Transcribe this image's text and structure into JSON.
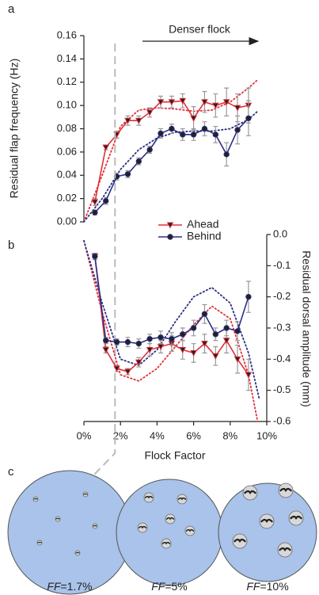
{
  "chart_data": [
    {
      "type": "line",
      "panel": "a",
      "y_label": "Residual flap frequency (Hz)",
      "annotation": "Denser flock",
      "xlim": [
        0,
        10
      ],
      "ylim": [
        0,
        0.16
      ],
      "yticks": [
        {
          "value": 0,
          "label": "0.00"
        },
        0.02,
        0.04,
        0.06,
        0.08,
        {
          "value": 0.1,
          "label": "0.10"
        },
        0.12,
        0.14,
        0.16
      ],
      "x": [
        0.6,
        1.2,
        1.8,
        2.4,
        3.0,
        3.6,
        4.2,
        4.8,
        5.4,
        6.0,
        6.6,
        7.2,
        7.8,
        8.4,
        9.0
      ],
      "series": [
        {
          "name": "Ahead",
          "color": "#e0303a",
          "marker": "triangle-down",
          "values": [
            0.017,
            0.064,
            0.075,
            0.087,
            0.087,
            0.094,
            0.103,
            0.103,
            0.104,
            0.089,
            0.103,
            0.1,
            0.103,
            0.098,
            0.1
          ],
          "errors": [
            0.003,
            0.002,
            0.003,
            0.004,
            0.004,
            0.004,
            0.005,
            0.005,
            0.006,
            0.01,
            0.009,
            0.01,
            0.012,
            0.012,
            0.015
          ]
        },
        {
          "name": "Behind",
          "color": "#2b2f86",
          "marker": "circle",
          "values": [
            0.008,
            0.018,
            0.039,
            0.041,
            0.052,
            0.062,
            0.076,
            0.08,
            0.075,
            0.075,
            0.08,
            0.075,
            0.058,
            0.079,
            0.089
          ],
          "errors": [
            0.002,
            0.003,
            0.003,
            0.003,
            0.003,
            0.003,
            0.004,
            0.004,
            0.005,
            0.005,
            0.006,
            0.007,
            0.01,
            0.012,
            0.015
          ]
        }
      ],
      "fit_lines": [
        {
          "color": "#e0303a",
          "x": [
            0,
            1,
            2,
            3,
            4,
            5,
            6,
            7,
            8,
            9,
            9.5
          ],
          "values": [
            0,
            0.04,
            0.082,
            0.096,
            0.098,
            0.097,
            0.095,
            0.096,
            0.103,
            0.115,
            0.122
          ]
        },
        {
          "color": "#2b2f86",
          "x": [
            0,
            1,
            2,
            3,
            4,
            5,
            6,
            7,
            8,
            9,
            9.5
          ],
          "values": [
            0,
            0.02,
            0.045,
            0.062,
            0.072,
            0.077,
            0.078,
            0.078,
            0.08,
            0.088,
            0.095
          ]
        }
      ]
    },
    {
      "type": "line",
      "panel": "b",
      "x_label": "Flock Factor",
      "y2_label": "Residual dorsal amplitude (mm)",
      "xlim": [
        0,
        10
      ],
      "xticks": [
        {
          "value": 0,
          "label": "0%"
        },
        {
          "value": 2,
          "label": "2%"
        },
        {
          "value": 4,
          "label": "4%"
        },
        {
          "value": 6,
          "label": "6%"
        },
        {
          "value": 8,
          "label": "8%"
        },
        {
          "value": 10,
          "label": "10%"
        }
      ],
      "y2lim": [
        -0.6,
        0
      ],
      "y2ticks": [
        {
          "value": 0,
          "label": "0.0"
        },
        -0.1,
        -0.2,
        -0.3,
        -0.4,
        -0.5,
        -0.6
      ],
      "marker_x": 1.7,
      "x": [
        0.6,
        1.2,
        1.8,
        2.4,
        3.0,
        3.6,
        4.2,
        4.8,
        5.4,
        6.0,
        6.6,
        7.2,
        7.8,
        8.4,
        9.0
      ],
      "series": [
        {
          "color": "#e0303a",
          "marker": "triangle-down",
          "axis": "y2",
          "values": [
            -0.07,
            -0.37,
            -0.43,
            -0.44,
            -0.41,
            -0.37,
            -0.36,
            -0.35,
            -0.37,
            -0.38,
            -0.35,
            -0.39,
            -0.34,
            -0.4,
            -0.45
          ],
          "errors": [
            0.01,
            0.01,
            0.01,
            0.01,
            0.015,
            0.02,
            0.02,
            0.025,
            0.03,
            0.03,
            0.03,
            0.03,
            0.04,
            0.045,
            0.05
          ]
        },
        {
          "color": "#2b2f86",
          "marker": "circle",
          "axis": "y2",
          "values": [
            -0.07,
            -0.34,
            -0.345,
            -0.345,
            -0.35,
            -0.335,
            -0.33,
            -0.335,
            -0.32,
            -0.3,
            -0.255,
            -0.32,
            -0.3,
            -0.31,
            -0.2
          ],
          "errors": [
            0.01,
            0.01,
            0.01,
            0.015,
            0.015,
            0.015,
            0.02,
            0.02,
            0.02,
            0.025,
            0.03,
            0.02,
            0.025,
            0.03,
            0.05
          ]
        }
      ],
      "fit_lines": [
        {
          "color": "#e0303a",
          "x": [
            0,
            1,
            2,
            3,
            4,
            5,
            6,
            7,
            8,
            9,
            9.5
          ],
          "values": [
            -0.02,
            -0.25,
            -0.45,
            -0.47,
            -0.43,
            -0.36,
            -0.29,
            -0.23,
            -0.27,
            -0.45,
            -0.6
          ]
        },
        {
          "color": "#2b2f86",
          "x": [
            0,
            1,
            2,
            3,
            4,
            5,
            6,
            7,
            8,
            9,
            9.6
          ],
          "values": [
            -0.02,
            -0.22,
            -0.4,
            -0.42,
            -0.37,
            -0.28,
            -0.2,
            -0.17,
            -0.22,
            -0.38,
            -0.53
          ]
        }
      ]
    }
  ],
  "panel_c": {
    "panel": "c",
    "diagrams": [
      {
        "var": "FF",
        "value": "=1.7%"
      },
      {
        "var": "FF",
        "value": "=5%"
      },
      {
        "var": "FF",
        "value": "=10%"
      }
    ]
  }
}
